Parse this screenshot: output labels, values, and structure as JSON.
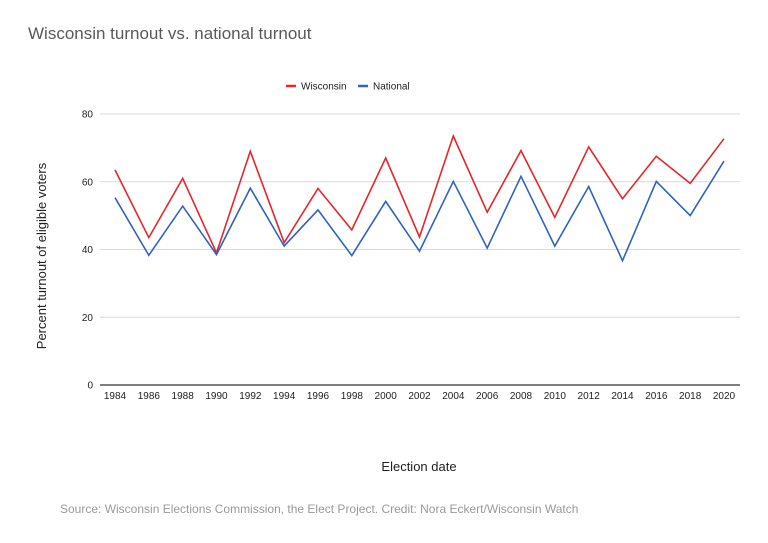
{
  "chart_data": {
    "type": "line",
    "title": "Wisconsin turnout vs. national turnout",
    "xlabel": "Election date",
    "ylabel": "Percent turnout of eligible voters",
    "x": [
      "1984",
      "1986",
      "1988",
      "1990",
      "1992",
      "1994",
      "1996",
      "1998",
      "2000",
      "2002",
      "2004",
      "2006",
      "2008",
      "2010",
      "2012",
      "2014",
      "2016",
      "2018",
      "2020"
    ],
    "series": [
      {
        "name": "Wisconsin",
        "color": "#e8262a",
        "values": [
          63.5,
          43.5,
          61,
          39,
          69,
          42,
          58,
          45.8,
          67,
          43.7,
          73.5,
          51,
          69.2,
          49.5,
          70.3,
          55,
          67.5,
          59.5,
          72.7
        ]
      },
      {
        "name": "National",
        "color": "#2e63c4",
        "values": [
          55.3,
          38.3,
          52.8,
          38.5,
          58.1,
          41,
          51.7,
          38.2,
          54.2,
          39.5,
          60.1,
          40.4,
          61.6,
          41,
          58.6,
          36.7,
          60.1,
          50,
          66.1
        ]
      }
    ],
    "ylim": [
      0,
      80
    ],
    "yticks": [
      0,
      20,
      40,
      60,
      80
    ],
    "grid": true,
    "legend": "top"
  },
  "source": "Source: Wisconsin Elections Commission, the Elect Project. Credit: Nora Eckert/Wisconsin Watch"
}
